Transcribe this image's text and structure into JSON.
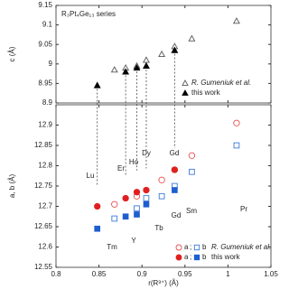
{
  "chart_data": [
    {
      "type": "scatter",
      "title": "R₃Pt₄Ge₁₃ series",
      "ylabel": "c (Å)",
      "xlim": [
        0.8,
        1.05
      ],
      "xticks": [
        0.8,
        0.85,
        0.9,
        0.95,
        1,
        1.05
      ],
      "ylim": [
        8.9,
        9.15
      ],
      "yticks": [
        8.9,
        8.95,
        9,
        9.05,
        9.1,
        9.15
      ],
      "series": [
        {
          "name": "R. Gumeniuk et al.",
          "marker": "triangle",
          "filled": false,
          "color": "#555555",
          "x": [
            0.868,
            0.881,
            0.894,
            0.905,
            0.923,
            0.938,
            0.958,
            1.01
          ],
          "values": [
            8.985,
            8.99,
            8.995,
            9.01,
            9.025,
            9.045,
            9.065,
            9.11
          ]
        },
        {
          "name": "this work",
          "marker": "triangle",
          "filled": true,
          "color": "#000000",
          "x": [
            0.848,
            0.881,
            0.894,
            0.905,
            0.938
          ],
          "values": [
            8.945,
            8.98,
            8.99,
            8.995,
            9.035
          ]
        }
      ]
    },
    {
      "type": "scatter",
      "ylabel": "a, b (Å)",
      "xlabel": "r(R³⁺) (Å)",
      "xlim": [
        0.8,
        1.05
      ],
      "xticks": [
        0.8,
        0.85,
        0.9,
        0.95,
        1,
        1.05
      ],
      "ylim": [
        12.55,
        12.95
      ],
      "yticks": [
        12.55,
        12.6,
        12.65,
        12.7,
        12.75,
        12.8,
        12.85,
        12.9
      ],
      "series": [
        {
          "name": "a",
          "marker": "circle",
          "filled": false,
          "color": "#e85050",
          "x": [
            0.868,
            0.894,
            0.923,
            0.938,
            0.958,
            1.01
          ],
          "values": [
            12.705,
            12.725,
            12.765,
            12.79,
            12.825,
            12.905
          ]
        },
        {
          "name": "b",
          "marker": "square",
          "filled": false,
          "color": "#3a7ad8",
          "x": [
            0.868,
            0.894,
            0.905,
            0.923,
            0.938,
            0.958,
            1.01
          ],
          "values": [
            12.67,
            12.695,
            12.72,
            12.725,
            12.75,
            12.785,
            12.85
          ]
        },
        {
          "name": "a",
          "marker": "circle",
          "filled": true,
          "color": "#e02020",
          "x": [
            0.848,
            0.881,
            0.894,
            0.905,
            0.938
          ],
          "values": [
            12.7,
            12.72,
            12.735,
            12.74,
            12.79
          ]
        },
        {
          "name": "b",
          "marker": "square",
          "filled": true,
          "color": "#1e5fd0",
          "x": [
            0.848,
            0.881,
            0.894,
            0.905,
            0.938
          ],
          "values": [
            12.645,
            12.675,
            12.68,
            12.705,
            12.74
          ]
        }
      ],
      "legend_separator": ";",
      "legend_labels": [
        "R. Gumeniuk et al.",
        "this work"
      ],
      "annotations": [
        "Lu",
        "Er",
        "Ho",
        "Dy",
        "Gd",
        "Tm",
        "Y",
        "Tb",
        "Gd",
        "Sm",
        "Pr"
      ]
    }
  ]
}
